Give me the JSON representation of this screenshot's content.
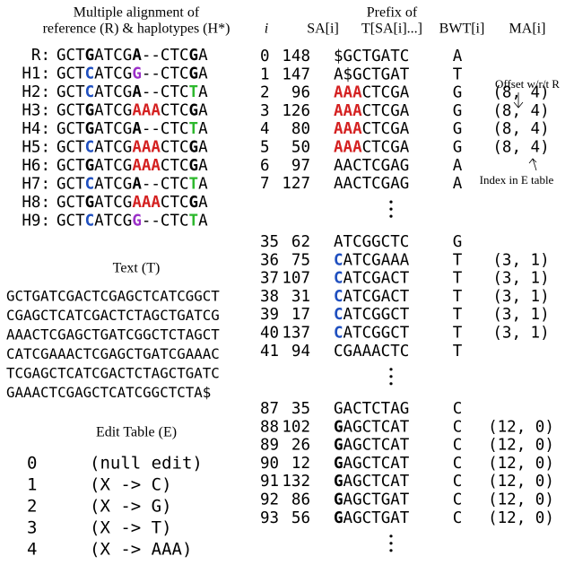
{
  "alignment": {
    "title": [
      "Multiple alignment of",
      "reference (R) & haplotypes (H*)"
    ],
    "rows": [
      {
        "label": "R:",
        "segments": [
          {
            "text": "GCT"
          },
          {
            "text": "G",
            "bold": true
          },
          {
            "text": "ATCG"
          },
          {
            "text": "A",
            "bold": true
          },
          {
            "text": "--CTC"
          },
          {
            "text": "G",
            "bold": true
          },
          {
            "text": "A"
          }
        ]
      },
      {
        "label": "H1:",
        "segments": [
          {
            "text": "GCT"
          },
          {
            "text": "C",
            "bold": true,
            "color": "#1f4fbf"
          },
          {
            "text": "ATCG"
          },
          {
            "text": "G",
            "bold": true,
            "color": "#9b30c8"
          },
          {
            "text": "--CTC"
          },
          {
            "text": "G",
            "bold": true
          },
          {
            "text": "A"
          }
        ]
      },
      {
        "label": "H2:",
        "segments": [
          {
            "text": "GCT"
          },
          {
            "text": "C",
            "bold": true,
            "color": "#1f4fbf"
          },
          {
            "text": "ATCG"
          },
          {
            "text": "A",
            "bold": true
          },
          {
            "text": "--CTC"
          },
          {
            "text": "T",
            "bold": true,
            "color": "#2db82d"
          },
          {
            "text": "A"
          }
        ]
      },
      {
        "label": "H3:",
        "segments": [
          {
            "text": "GCT"
          },
          {
            "text": "G",
            "bold": true
          },
          {
            "text": "ATCG"
          },
          {
            "text": "AAA",
            "bold": true,
            "color": "#d42020"
          },
          {
            "text": "CTC"
          },
          {
            "text": "G",
            "bold": true
          },
          {
            "text": "A"
          }
        ]
      },
      {
        "label": "H4:",
        "segments": [
          {
            "text": "GCT"
          },
          {
            "text": "G",
            "bold": true
          },
          {
            "text": "ATCG"
          },
          {
            "text": "A",
            "bold": true
          },
          {
            "text": "--CTC"
          },
          {
            "text": "T",
            "bold": true,
            "color": "#2db82d"
          },
          {
            "text": "A"
          }
        ]
      },
      {
        "label": "H5:",
        "segments": [
          {
            "text": "GCT"
          },
          {
            "text": "C",
            "bold": true,
            "color": "#1f4fbf"
          },
          {
            "text": "ATCG"
          },
          {
            "text": "AAA",
            "bold": true,
            "color": "#d42020"
          },
          {
            "text": "CTC"
          },
          {
            "text": "G",
            "bold": true
          },
          {
            "text": "A"
          }
        ]
      },
      {
        "label": "H6:",
        "segments": [
          {
            "text": "GCT"
          },
          {
            "text": "G",
            "bold": true
          },
          {
            "text": "ATCG"
          },
          {
            "text": "AAA",
            "bold": true,
            "color": "#d42020"
          },
          {
            "text": "CTC"
          },
          {
            "text": "G",
            "bold": true
          },
          {
            "text": "A"
          }
        ]
      },
      {
        "label": "H7:",
        "segments": [
          {
            "text": "GCT"
          },
          {
            "text": "C",
            "bold": true,
            "color": "#1f4fbf"
          },
          {
            "text": "ATCG"
          },
          {
            "text": "A",
            "bold": true
          },
          {
            "text": "--CTC"
          },
          {
            "text": "T",
            "bold": true,
            "color": "#2db82d"
          },
          {
            "text": "A"
          }
        ]
      },
      {
        "label": "H8:",
        "segments": [
          {
            "text": "GCT"
          },
          {
            "text": "G",
            "bold": true
          },
          {
            "text": "ATCG"
          },
          {
            "text": "AAA",
            "bold": true,
            "color": "#d42020"
          },
          {
            "text": "CTC"
          },
          {
            "text": "G",
            "bold": true
          },
          {
            "text": "A"
          }
        ]
      },
      {
        "label": "H9:",
        "segments": [
          {
            "text": "GCT"
          },
          {
            "text": "C",
            "bold": true,
            "color": "#1f4fbf"
          },
          {
            "text": "ATCG"
          },
          {
            "text": "G",
            "bold": true,
            "color": "#9b30c8"
          },
          {
            "text": "--CTC"
          },
          {
            "text": "T",
            "bold": true,
            "color": "#2db82d"
          },
          {
            "text": "A"
          }
        ]
      }
    ]
  },
  "text": {
    "title": "Text (T)",
    "lines": [
      "GCTGATCGACTCGAGCTCATCGGCT",
      "CGAGCTCATCGACTCTAGCTGATCG",
      "AAACTCGAGCTGATCGGCTCTAGCT",
      "CATCGAAACTCGAGCTGATCGAAAC",
      "TCGAGCTCATCGACTCTAGCTGATC",
      "GAAACTCGAGCTCATCGGCTCTA$"
    ]
  },
  "edit_table": {
    "title": "Edit Table (E)",
    "entries": [
      {
        "index": 0,
        "edit": "(null edit)",
        "color": "#000000"
      },
      {
        "index": 1,
        "edit": "(X -> C)",
        "color": "#1f4fbf"
      },
      {
        "index": 2,
        "edit": "(X -> G)",
        "color": "#9b30c8"
      },
      {
        "index": 3,
        "edit": "(X -> T)",
        "color": "#2db82d"
      },
      {
        "index": 4,
        "edit": "(X -> AAA)",
        "color": "#d42020"
      }
    ]
  },
  "table": {
    "headers": {
      "i": "i",
      "sa": "SA[i]",
      "prefix": [
        "Prefix of",
        "T[SA[i]...]"
      ],
      "bwt": "BWT[i]",
      "ma": "MA[i]"
    },
    "annotations": {
      "offset": "Offset w/r/t R",
      "index": "Index in E table"
    },
    "groups": [
      {
        "rows": [
          {
            "i": 0,
            "sa": 148,
            "prefix": [
              {
                "text": "$GCTGATC"
              }
            ],
            "bwt": "A"
          },
          {
            "i": 1,
            "sa": 147,
            "prefix": [
              {
                "text": "A$GCTGAT"
              }
            ],
            "bwt": "T"
          },
          {
            "i": 2,
            "sa": 96,
            "prefix": [
              {
                "text": "AAA",
                "bold": true,
                "color": "#d42020"
              },
              {
                "text": "CTCGA"
              }
            ],
            "bwt": "G",
            "ma": "(8, 4)",
            "ma_color": "#d42020"
          },
          {
            "i": 3,
            "sa": 126,
            "prefix": [
              {
                "text": "AAA",
                "bold": true,
                "color": "#d42020"
              },
              {
                "text": "CTCGA"
              }
            ],
            "bwt": "G",
            "ma": "(8, 4)",
            "ma_color": "#d42020"
          },
          {
            "i": 4,
            "sa": 80,
            "prefix": [
              {
                "text": "AAA",
                "bold": true,
                "color": "#d42020"
              },
              {
                "text": "CTCGA"
              }
            ],
            "bwt": "G",
            "ma": "(8, 4)",
            "ma_color": "#d42020"
          },
          {
            "i": 5,
            "sa": 50,
            "prefix": [
              {
                "text": "AAA",
                "bold": true,
                "color": "#d42020"
              },
              {
                "text": "CTCGA"
              }
            ],
            "bwt": "G",
            "ma": "(8, 4)",
            "ma_color": "#d42020"
          },
          {
            "i": 6,
            "sa": 97,
            "prefix": [
              {
                "text": "AACTCGAG"
              }
            ],
            "bwt": "A"
          },
          {
            "i": 7,
            "sa": 127,
            "prefix": [
              {
                "text": "AACTCGAG"
              }
            ],
            "bwt": "A"
          }
        ]
      },
      {
        "rows": [
          {
            "i": 35,
            "sa": 62,
            "prefix": [
              {
                "text": "ATCGGCTC"
              }
            ],
            "bwt": "G"
          },
          {
            "i": 36,
            "sa": 75,
            "prefix": [
              {
                "text": "C",
                "bold": true,
                "color": "#1f4fbf"
              },
              {
                "text": "ATCGAAA"
              }
            ],
            "bwt": "T",
            "ma": "(3, 1)",
            "ma_color": "#1f4fbf"
          },
          {
            "i": 37,
            "sa": 107,
            "prefix": [
              {
                "text": "C",
                "bold": true,
                "color": "#1f4fbf"
              },
              {
                "text": "ATCGACT"
              }
            ],
            "bwt": "T",
            "ma": "(3, 1)",
            "ma_color": "#1f4fbf"
          },
          {
            "i": 38,
            "sa": 31,
            "prefix": [
              {
                "text": "C",
                "bold": true,
                "color": "#1f4fbf"
              },
              {
                "text": "ATCGACT"
              }
            ],
            "bwt": "T",
            "ma": "(3, 1)",
            "ma_color": "#1f4fbf"
          },
          {
            "i": 39,
            "sa": 17,
            "prefix": [
              {
                "text": "C",
                "bold": true,
                "color": "#1f4fbf"
              },
              {
                "text": "ATCGGCT"
              }
            ],
            "bwt": "T",
            "ma": "(3, 1)",
            "ma_color": "#1f4fbf"
          },
          {
            "i": 40,
            "sa": 137,
            "prefix": [
              {
                "text": "C",
                "bold": true,
                "color": "#1f4fbf"
              },
              {
                "text": "ATCGGCT"
              }
            ],
            "bwt": "T",
            "ma": "(3, 1)",
            "ma_color": "#1f4fbf"
          },
          {
            "i": 41,
            "sa": 94,
            "prefix": [
              {
                "text": "CGAAACTC"
              }
            ],
            "bwt": "T"
          }
        ]
      },
      {
        "rows": [
          {
            "i": 87,
            "sa": 35,
            "prefix": [
              {
                "text": "GACTCTAG"
              }
            ],
            "bwt": "C"
          },
          {
            "i": 88,
            "sa": 102,
            "prefix": [
              {
                "text": "G",
                "bold": true
              },
              {
                "text": "AGCTCAT"
              }
            ],
            "bwt": "C",
            "ma": "(12, 0)",
            "ma_color": "#000000"
          },
          {
            "i": 89,
            "sa": 26,
            "prefix": [
              {
                "text": "G",
                "bold": true
              },
              {
                "text": "AGCTCAT"
              }
            ],
            "bwt": "C",
            "ma": "(12, 0)",
            "ma_color": "#000000"
          },
          {
            "i": 90,
            "sa": 12,
            "prefix": [
              {
                "text": "G",
                "bold": true
              },
              {
                "text": "AGCTCAT"
              }
            ],
            "bwt": "C",
            "ma": "(12, 0)",
            "ma_color": "#000000"
          },
          {
            "i": 91,
            "sa": 132,
            "prefix": [
              {
                "text": "G",
                "bold": true
              },
              {
                "text": "AGCTCAT"
              }
            ],
            "bwt": "C",
            "ma": "(12, 0)",
            "ma_color": "#000000"
          },
          {
            "i": 92,
            "sa": 86,
            "prefix": [
              {
                "text": "G",
                "bold": true
              },
              {
                "text": "AGCTGAT"
              }
            ],
            "bwt": "C",
            "ma": "(12, 0)",
            "ma_color": "#000000"
          },
          {
            "i": 93,
            "sa": 56,
            "prefix": [
              {
                "text": "G",
                "bold": true
              },
              {
                "text": "AGCTGAT"
              }
            ],
            "bwt": "C",
            "ma": "(12, 0)",
            "ma_color": "#000000"
          }
        ]
      }
    ]
  }
}
